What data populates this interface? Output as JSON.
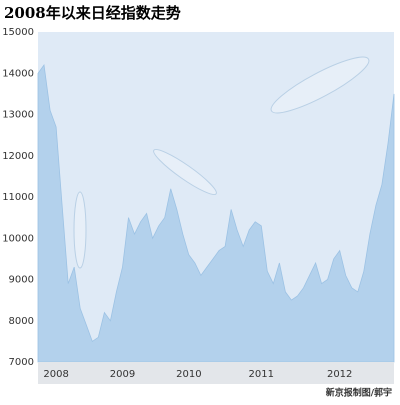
{
  "chart_data": {
    "type": "area",
    "title": "2008年以来日经指数走势",
    "source": "新京报制图/郭宇",
    "categories": [
      null,
      null,
      null,
      "2008",
      null,
      null,
      null,
      null,
      null,
      null,
      null,
      null,
      null,
      null,
      "2009",
      null,
      null,
      null,
      null,
      null,
      null,
      null,
      null,
      null,
      null,
      "2010",
      null,
      null,
      null,
      null,
      null,
      null,
      null,
      null,
      null,
      null,
      null,
      "2011",
      null,
      null,
      null,
      null,
      null,
      null,
      null,
      null,
      null,
      null,
      null,
      null,
      "2012",
      null,
      null,
      null,
      null,
      null,
      null,
      null,
      null,
      null
    ],
    "values": [
      14000,
      14200,
      13100,
      12700,
      10800,
      8900,
      9300,
      8300,
      7900,
      7500,
      7600,
      8200,
      8000,
      8700,
      9300,
      10500,
      10100,
      10400,
      10600,
      10000,
      10300,
      10500,
      11200,
      10700,
      10100,
      9600,
      9400,
      9100,
      9300,
      9500,
      9700,
      9800,
      10700,
      10200,
      9800,
      10200,
      10400,
      10300,
      9200,
      8900,
      9400,
      8700,
      8500,
      8600,
      8800,
      9100,
      9400,
      8900,
      9000,
      9500,
      9700,
      9100,
      8800,
      8700,
      9200,
      10100,
      10800,
      11300,
      12300,
      13500
    ],
    "color": "#b3d1ec",
    "ylim": [
      7000,
      15000
    ],
    "yticks": [
      7000,
      8000,
      9000,
      10000,
      11000,
      12000,
      13000,
      14000,
      15000
    ],
    "grid": false
  }
}
